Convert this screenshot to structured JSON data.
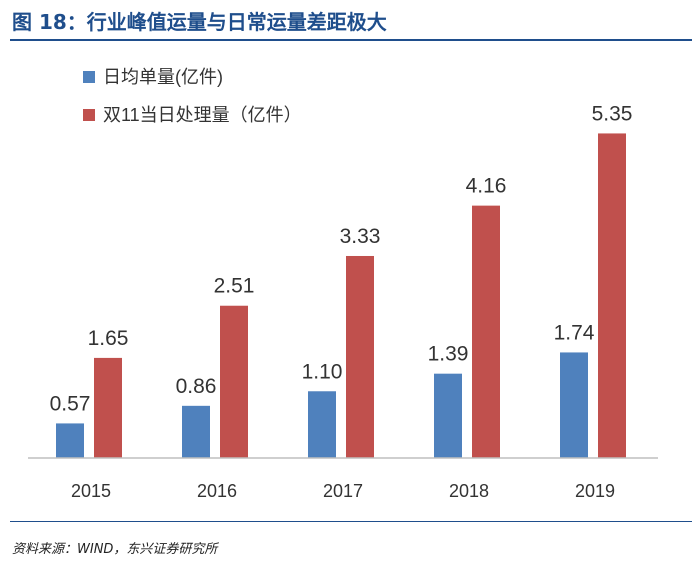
{
  "header": {
    "title": "图 18：行业峰值运量与日常运量差距极大"
  },
  "footer": {
    "source": "资料来源：WIND，东兴证券研究所"
  },
  "chart_data": {
    "type": "bar",
    "title": "行业峰值运量与日常运量差距极大",
    "xlabel": "",
    "ylabel": "",
    "ylim": [
      0,
      6
    ],
    "grid": false,
    "legend": "top-left",
    "categories": [
      "2015",
      "2016",
      "2017",
      "2018",
      "2019"
    ],
    "series": [
      {
        "name": "日均单量(亿件)",
        "color": "#4f81bd",
        "values": [
          0.57,
          0.86,
          1.1,
          1.39,
          1.74
        ],
        "labels": [
          "0.57",
          "0.86",
          "1.10",
          "1.39",
          "1.74"
        ]
      },
      {
        "name": "双11当日处理量（亿件）",
        "color": "#c0504d",
        "values": [
          1.65,
          2.51,
          3.33,
          4.16,
          5.35
        ],
        "labels": [
          "1.65",
          "2.51",
          "3.33",
          "4.16",
          "5.35"
        ]
      }
    ]
  }
}
